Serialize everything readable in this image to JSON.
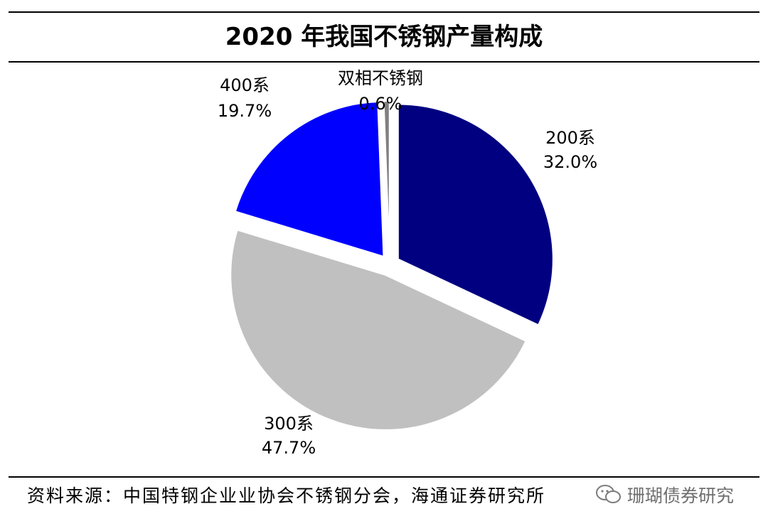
{
  "title": "2020 年我国不锈钢产量构成",
  "source": "资料来源：中国特钢企业业协会不锈钢分会，海通证券研究所",
  "watermark": "珊瑚债券研究",
  "chart_data": {
    "type": "pie",
    "title": "2020 年我国不锈钢产量构成",
    "start_angle_deg": 0,
    "direction": "clockwise",
    "exploded": true,
    "slices": [
      {
        "name": "200系",
        "value": 32.0,
        "label": "32.0%",
        "color": "#000080"
      },
      {
        "name": "300系",
        "value": 47.7,
        "label": "47.7%",
        "color": "#C0C0C0"
      },
      {
        "name": "400系",
        "value": 19.7,
        "label": "19.7%",
        "color": "#0000FF"
      },
      {
        "name": "双相不锈钢",
        "value": 0.6,
        "label": "0.6%",
        "color": "#808080"
      }
    ]
  }
}
